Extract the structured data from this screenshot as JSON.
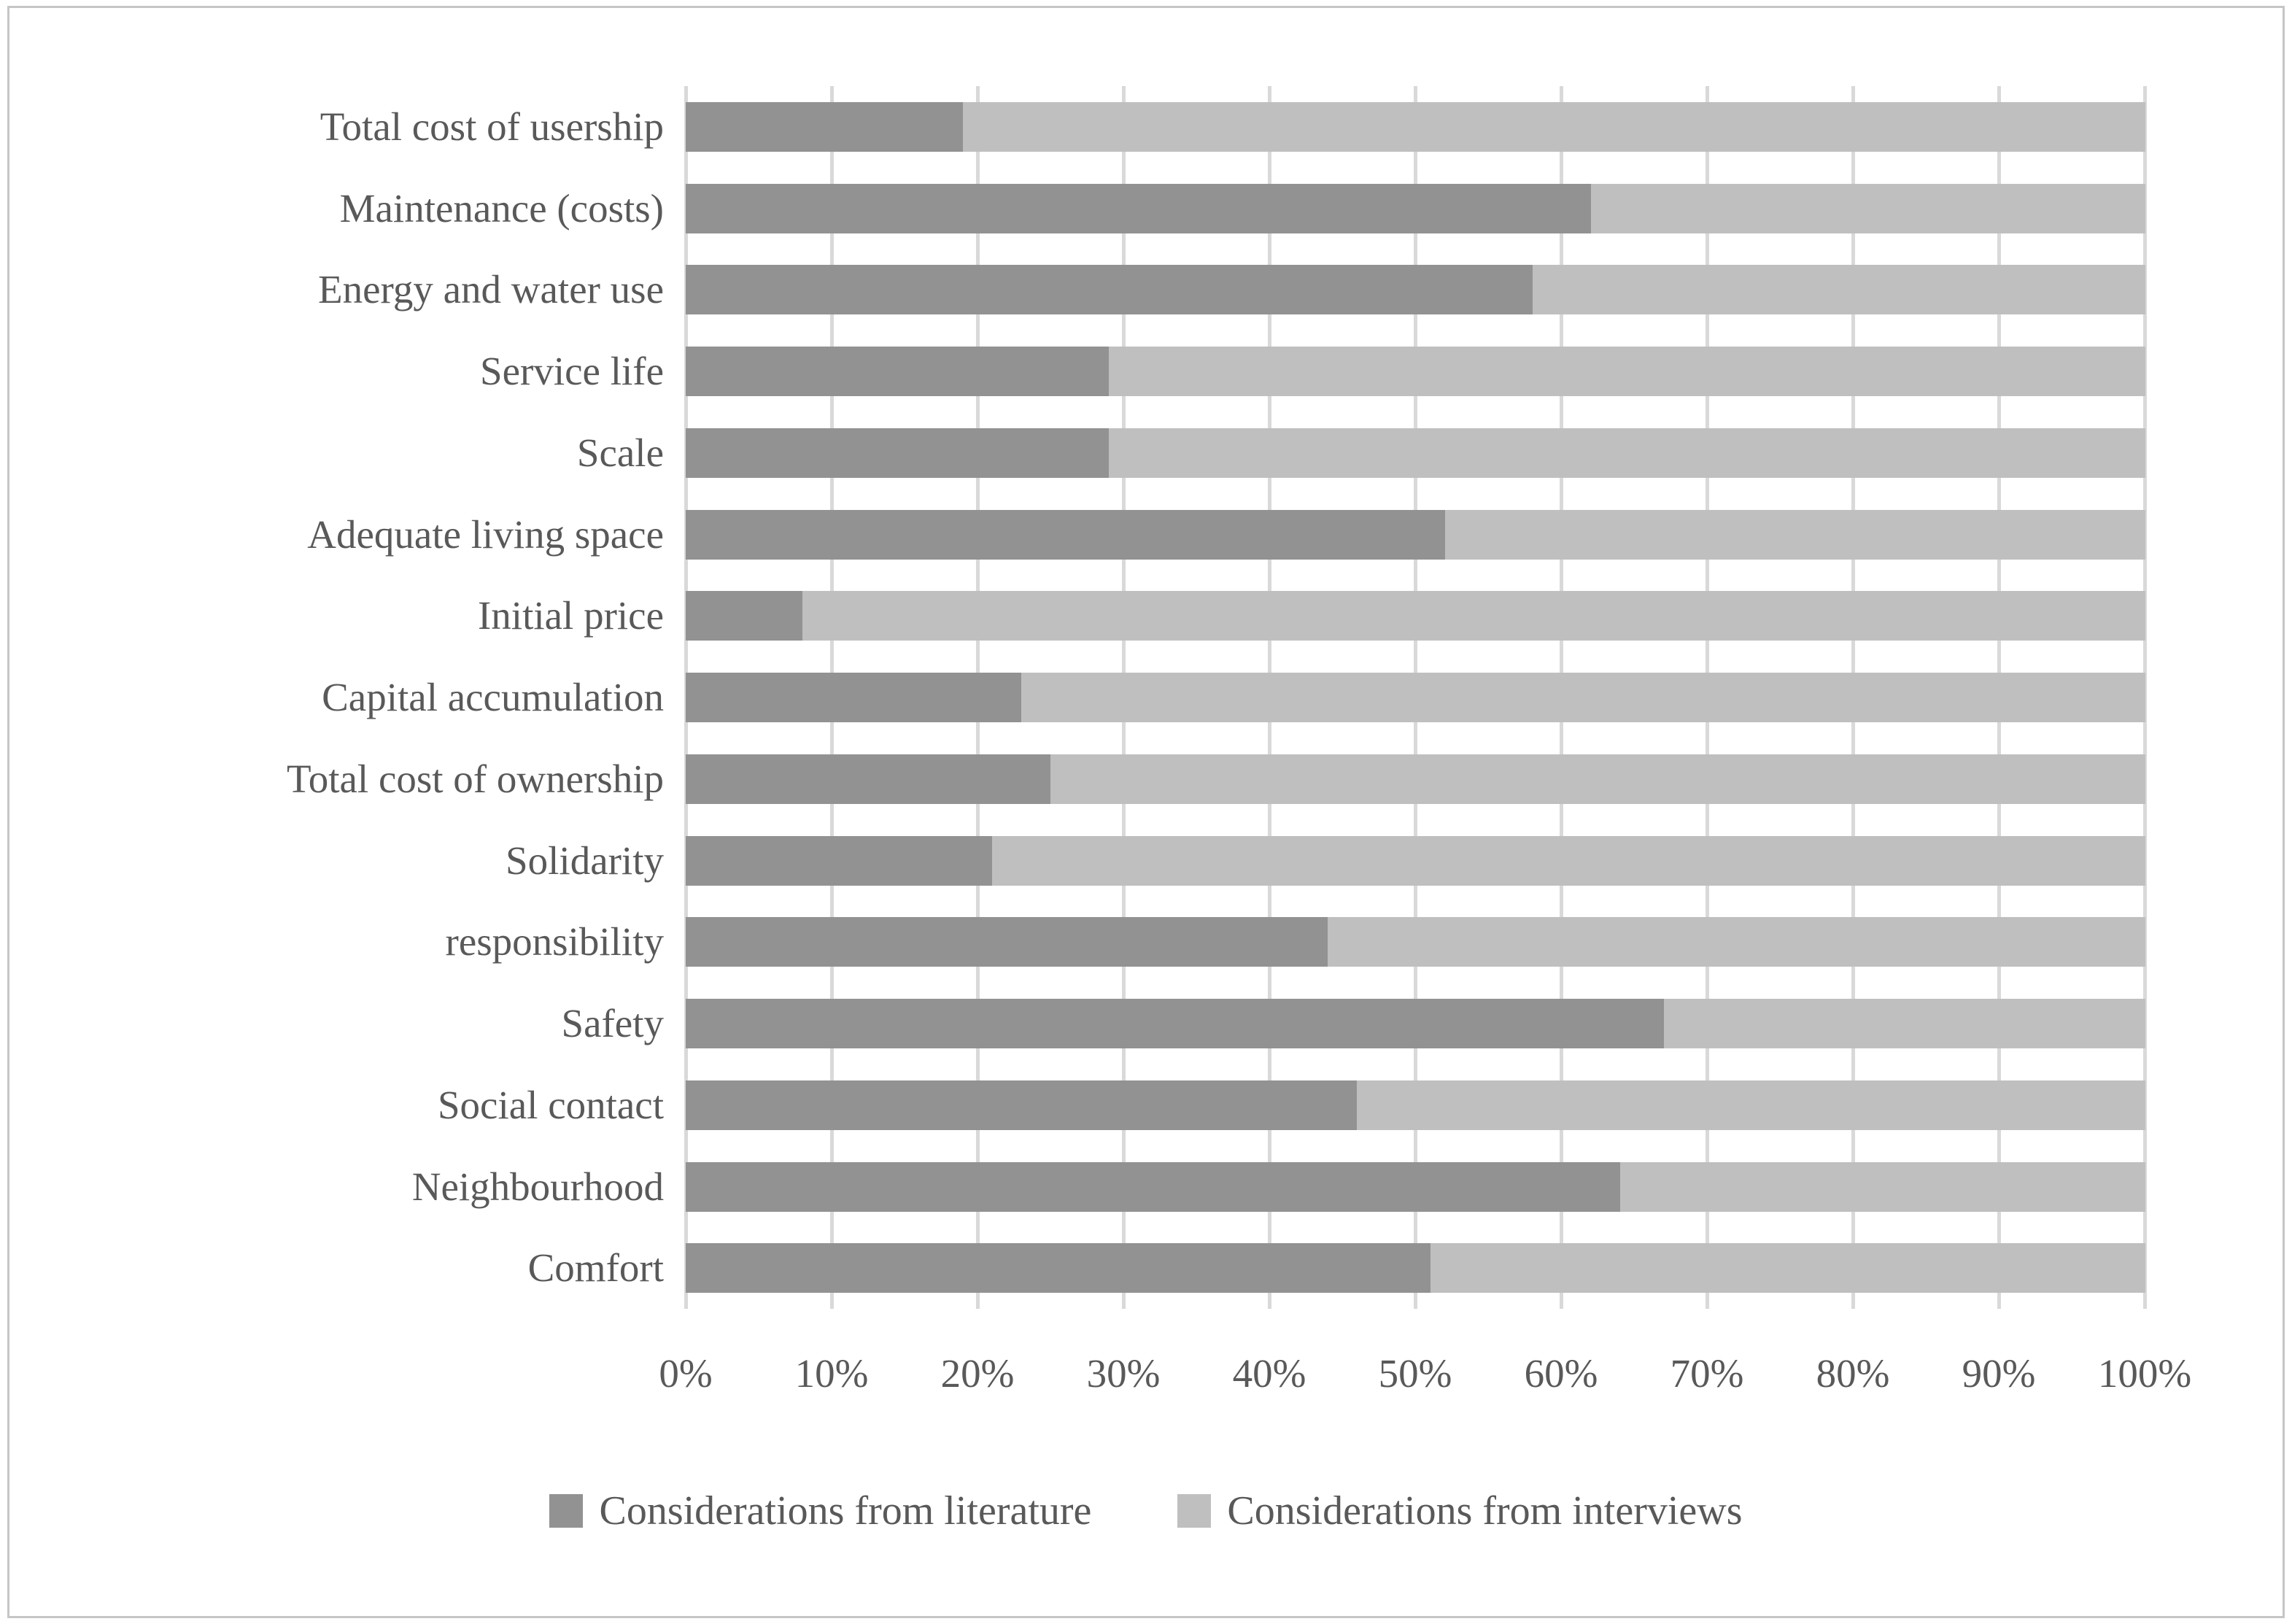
{
  "chart_data": {
    "type": "bar",
    "orientation": "horizontal",
    "stacked": true,
    "title": "",
    "xlabel": "",
    "ylabel": "",
    "grid": true,
    "legend_position": "bottom",
    "x_axis": {
      "min": 0,
      "max": 100,
      "tick_step": 10,
      "ticks": [
        "0%",
        "10%",
        "20%",
        "30%",
        "40%",
        "50%",
        "60%",
        "70%",
        "80%",
        "90%",
        "100%"
      ]
    },
    "categories": [
      "Total cost of usership",
      "Maintenance (costs)",
      "Energy and water use",
      "Service life",
      "Scale",
      "Adequate living space",
      "Initial price",
      "Capital accumulation",
      "Total cost of ownership",
      "Solidarity",
      "responsibility",
      "Safety",
      "Social contact",
      "Neighbourhood",
      "Comfort"
    ],
    "series": [
      {
        "name": "Considerations from literature",
        "color": "#929292",
        "values": [
          19,
          62,
          58,
          29,
          29,
          52,
          8,
          23,
          25,
          21,
          44,
          67,
          46,
          64,
          51
        ]
      },
      {
        "name": "Considerations from interviews",
        "color": "#bfbfbf",
        "values": [
          81,
          38,
          42,
          71,
          71,
          48,
          92,
          77,
          75,
          79,
          56,
          33,
          54,
          36,
          49
        ]
      }
    ]
  },
  "colors": {
    "grid": "#d9d9d9",
    "text": "#595959",
    "frame": "#c6c6c6",
    "background": "#ffffff"
  },
  "legend": {
    "literature_label": "Considerations from literature",
    "interviews_label": "Considerations from interviews"
  }
}
